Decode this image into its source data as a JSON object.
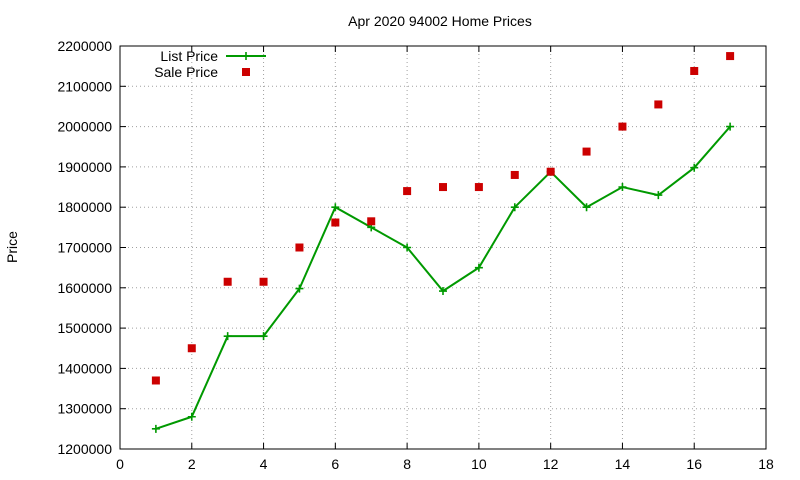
{
  "chart_data": {
    "type": "line",
    "title": "Apr 2020 94002 Home Prices",
    "xlabel": "",
    "ylabel": "Price",
    "xlim": [
      0,
      18
    ],
    "ylim": [
      1200000,
      2200000
    ],
    "x_ticks": [
      0,
      2,
      4,
      6,
      8,
      10,
      12,
      14,
      16,
      18
    ],
    "y_ticks": [
      1200000,
      1300000,
      1400000,
      1500000,
      1600000,
      1700000,
      1800000,
      1900000,
      2000000,
      2100000,
      2200000
    ],
    "grid": true,
    "legend_position": "top-left",
    "series": [
      {
        "name": "List Price",
        "style": "line-plus",
        "color": "#009900",
        "x": [
          1,
          2,
          3,
          4,
          5,
          6,
          7,
          8,
          9,
          10,
          11,
          12,
          13,
          14,
          15,
          16,
          17
        ],
        "y": [
          1250000,
          1280000,
          1480000,
          1480000,
          1598000,
          1800000,
          1750000,
          1700000,
          1592000,
          1650000,
          1800000,
          1888000,
          1800000,
          1850000,
          1830000,
          1898000,
          2000000
        ]
      },
      {
        "name": "Sale Price",
        "style": "square-points",
        "color": "#cc0000",
        "x": [
          1,
          2,
          3,
          4,
          5,
          6,
          7,
          8,
          9,
          10,
          11,
          12,
          13,
          14,
          15,
          16,
          17
        ],
        "y": [
          1370000,
          1450000,
          1615000,
          1615000,
          1700000,
          1762000,
          1765000,
          1840000,
          1850000,
          1850000,
          1880000,
          1888000,
          1938000,
          2000000,
          2055000,
          2138000,
          2175000
        ]
      }
    ]
  }
}
